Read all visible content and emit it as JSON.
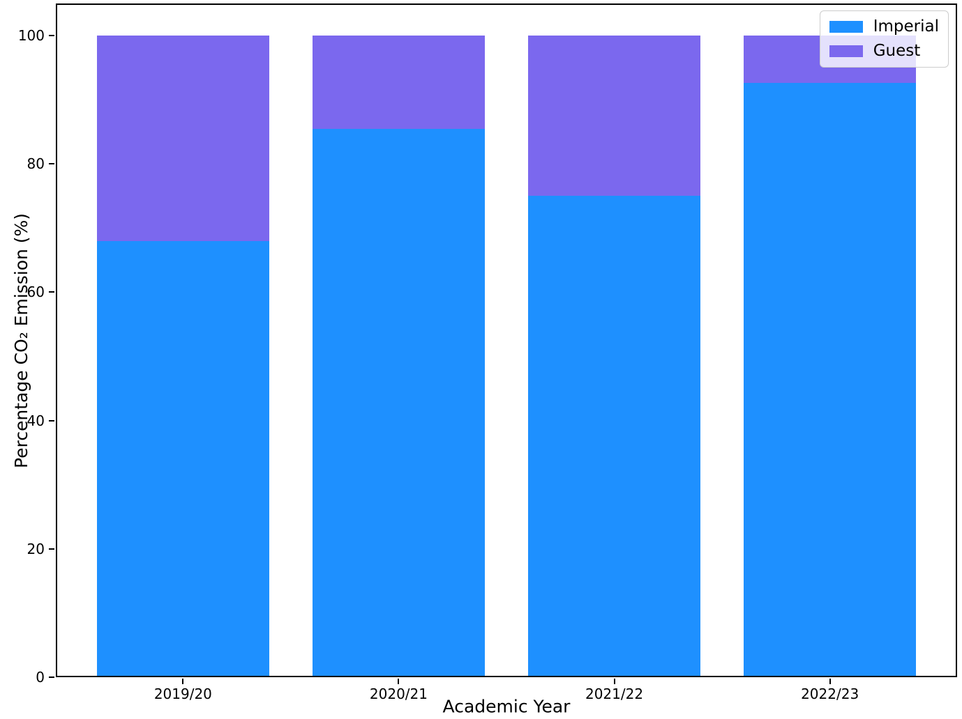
{
  "chart_data": {
    "type": "bar",
    "stacked": true,
    "title": "",
    "xlabel": "Academic Year",
    "ylabel": "Percentage CO₂ Emission (%)",
    "categories": [
      "2019/20",
      "2020/21",
      "2021/22",
      "2022/23"
    ],
    "series": [
      {
        "name": "Imperial",
        "color": "#1E90FF",
        "values": [
          68,
          85.5,
          75,
          92.6
        ]
      },
      {
        "name": "Guest",
        "color": "#7B68EE",
        "values": [
          32,
          14.5,
          25,
          7.4
        ]
      }
    ],
    "ylim": [
      0,
      105
    ],
    "yticks": [
      0,
      20,
      40,
      60,
      80,
      100
    ],
    "legend_position": "upper right",
    "grid": false,
    "bar_total": 100
  }
}
